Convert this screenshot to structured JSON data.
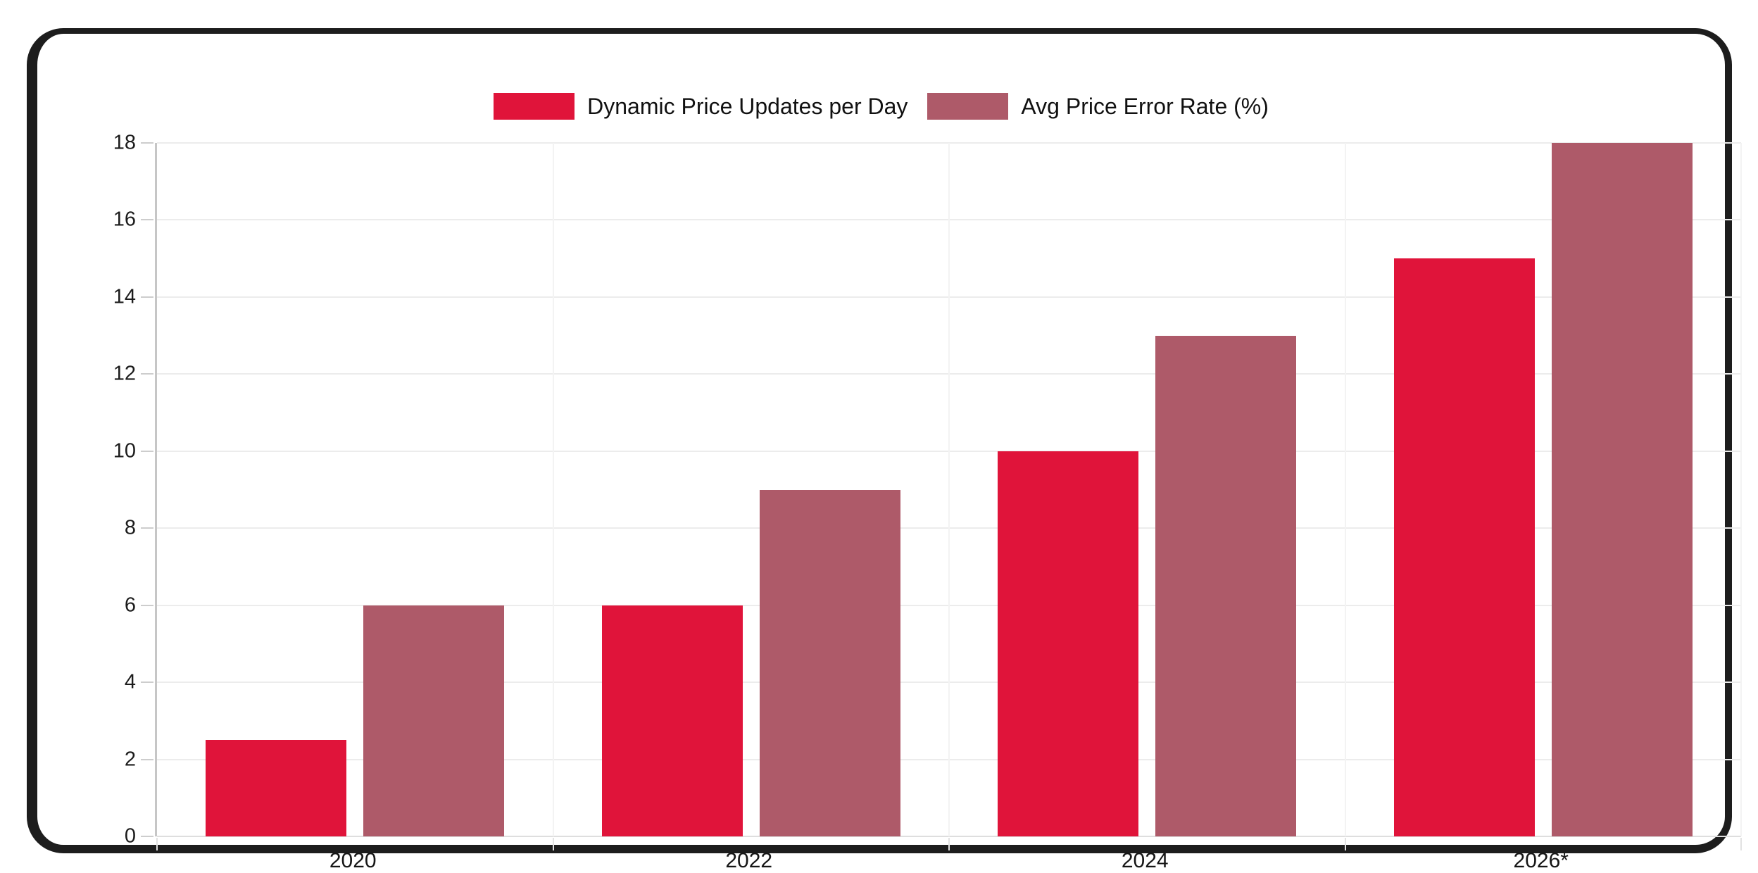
{
  "chart_data": {
    "type": "bar",
    "categories": [
      "2020",
      "2022",
      "2024",
      "2026*"
    ],
    "series": [
      {
        "name": "Dynamic Price Updates per Day",
        "color": "#e0143a",
        "values": [
          2.5,
          6,
          10,
          15
        ]
      },
      {
        "name": "Avg Price Error Rate (%)",
        "color": "#ae5a69",
        "values": [
          6,
          9,
          13,
          18
        ]
      }
    ],
    "title": "",
    "xlabel": "",
    "ylabel": "",
    "ylim": [
      0,
      18
    ],
    "yticks": [
      0,
      2,
      4,
      6,
      8,
      10,
      12,
      14,
      16,
      18
    ],
    "grid": true,
    "legend_position": "top-center"
  }
}
